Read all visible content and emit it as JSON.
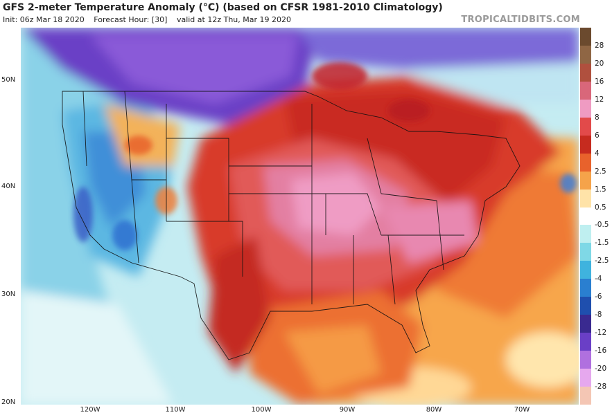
{
  "header": {
    "title": "GFS 2-meter Temperature Anomaly (°C) (based on CFSR 1981-2010 Climatology)",
    "init": "Init: 06z Mar 18 2020",
    "forecast_hour": "Forecast Hour: [30]",
    "valid": "valid at 12z Thu, Mar 19 2020",
    "brand": "TROPICALTIDBITS.COM"
  },
  "axes": {
    "lat_labels": [
      "50N",
      "40N",
      "30N",
      "20N"
    ],
    "lon_labels": [
      "120W",
      "110W",
      "100W",
      "90W",
      "80W",
      "70W"
    ]
  },
  "colorbar": {
    "labels": [
      "28",
      "20",
      "16",
      "12",
      "8",
      "6",
      "4",
      "2.5",
      "1.5",
      "0.5",
      "-0.5",
      "-1.5",
      "-2.5",
      "-4",
      "-6",
      "-8",
      "-12",
      "-16",
      "-20",
      "-28"
    ],
    "colors": [
      "#6b4a2e",
      "#8f6644",
      "#b0503e",
      "#d9677a",
      "#ef9bc2",
      "#e24a4a",
      "#c62b1f",
      "#e8622c",
      "#f5a34a",
      "#ffe3a8",
      "#ffffff",
      "#bfeff0",
      "#7fd8e6",
      "#3fb3de",
      "#2a7fd0",
      "#1f4fae",
      "#3a2a90",
      "#6a3fc6",
      "#b070df",
      "#e6a8ee",
      "#f4c6b4"
    ]
  }
}
